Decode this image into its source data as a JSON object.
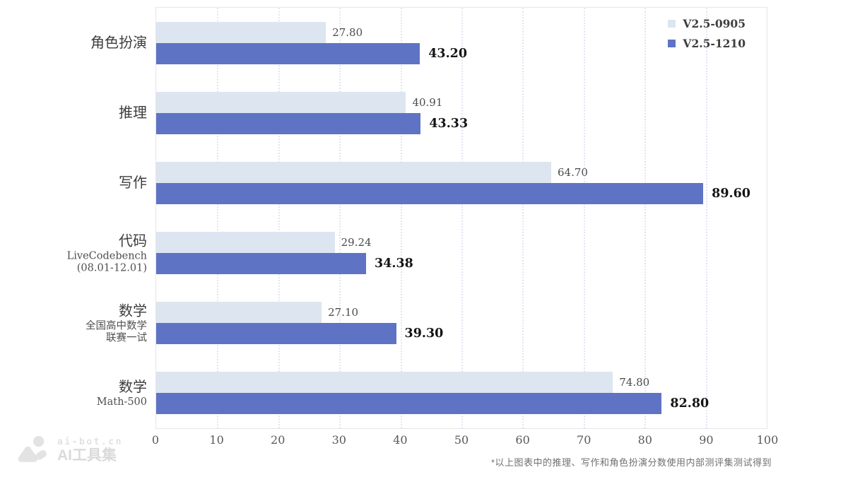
{
  "chart_data": {
    "type": "bar",
    "orientation": "horizontal",
    "title": "",
    "xlabel": "",
    "ylabel": "",
    "xlim": [
      0,
      100
    ],
    "x_ticks": [
      "0",
      "10",
      "20",
      "30",
      "40",
      "50",
      "60",
      "70",
      "80",
      "90",
      "100"
    ],
    "grid": "vertical-dotted",
    "legend_position": "top-right-inside",
    "series_names": [
      "V2.5-0905",
      "V2.5-1210"
    ],
    "series_colors": [
      "#dde5f0",
      "#5f73c4"
    ],
    "categories": [
      {
        "label": "角色扮演",
        "sublabel_lines": [],
        "values": [
          27.8,
          43.2
        ],
        "value_labels": [
          "27.80",
          "43.20"
        ]
      },
      {
        "label": "推理",
        "sublabel_lines": [],
        "values": [
          40.91,
          43.33
        ],
        "value_labels": [
          "40.91",
          "43.33"
        ]
      },
      {
        "label": "写作",
        "sublabel_lines": [],
        "values": [
          64.7,
          89.6
        ],
        "value_labels": [
          "64.70",
          "89.60"
        ]
      },
      {
        "label": "代码",
        "sublabel_lines": [
          "LiveCodebench",
          "(08.01-12.01)"
        ],
        "values": [
          29.24,
          34.38
        ],
        "value_labels": [
          "29.24",
          "34.38"
        ]
      },
      {
        "label": "数学",
        "sublabel_lines": [
          "全国高中数学",
          "联赛一试"
        ],
        "values": [
          27.1,
          39.3
        ],
        "value_labels": [
          "27.10",
          "39.30"
        ]
      },
      {
        "label": "数学",
        "sublabel_lines": [
          "Math-500"
        ],
        "values": [
          74.8,
          82.8
        ],
        "value_labels": [
          "74.80",
          "82.80"
        ]
      }
    ],
    "footnote": "*以上图表中的推理、写作和角色扮演分数使用内部测评集测试得到"
  },
  "legend": {
    "items": [
      {
        "label": "V2.5-0905",
        "color": "#dde5f0"
      },
      {
        "label": "V2.5-1210",
        "color": "#5f73c4"
      }
    ]
  },
  "colors": {
    "light_series": "#dde5f0",
    "dark_series": "#5f73c4",
    "gridline": "#e0e6f2",
    "plot_border": "#e6e6e6",
    "tick_text": "#595959",
    "value_text": "#4a4a4a",
    "value_text_bold": "#141414"
  },
  "watermark": {
    "brand": "ai-bot.cn",
    "name": "AI工具集"
  }
}
